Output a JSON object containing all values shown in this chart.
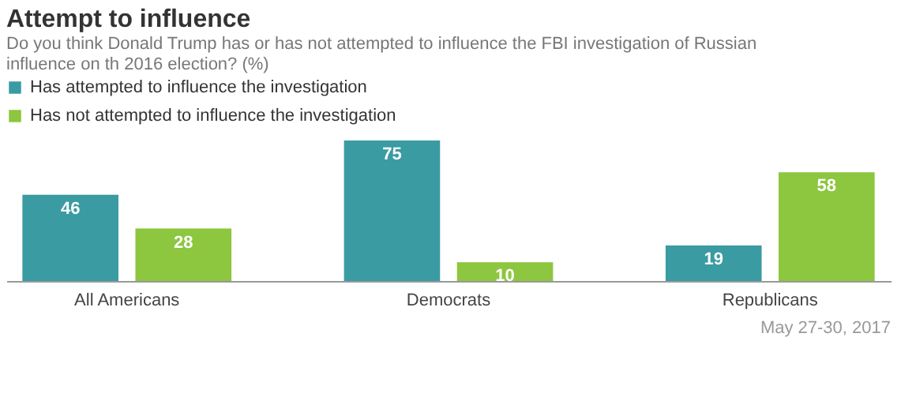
{
  "chart_data": {
    "type": "bar",
    "title": "Attempt to influence",
    "subtitle": "Do you think Donald Trump has or has not attempted to influence the FBI investigation of Russian influence on th 2016 election? (%)",
    "categories": [
      "All Americans",
      "Democrats",
      "Republicans"
    ],
    "series": [
      {
        "name": "Has attempted to influence the investigation",
        "color": "#3a9ba3",
        "values": [
          46,
          75,
          19
        ]
      },
      {
        "name": "Has not attempted to influence the investigation",
        "color": "#8dc63f",
        "values": [
          28,
          10,
          58
        ]
      }
    ],
    "data_labels": true,
    "legend": "top",
    "grid": false,
    "annotations": [
      "May 27-30, 2017"
    ]
  }
}
